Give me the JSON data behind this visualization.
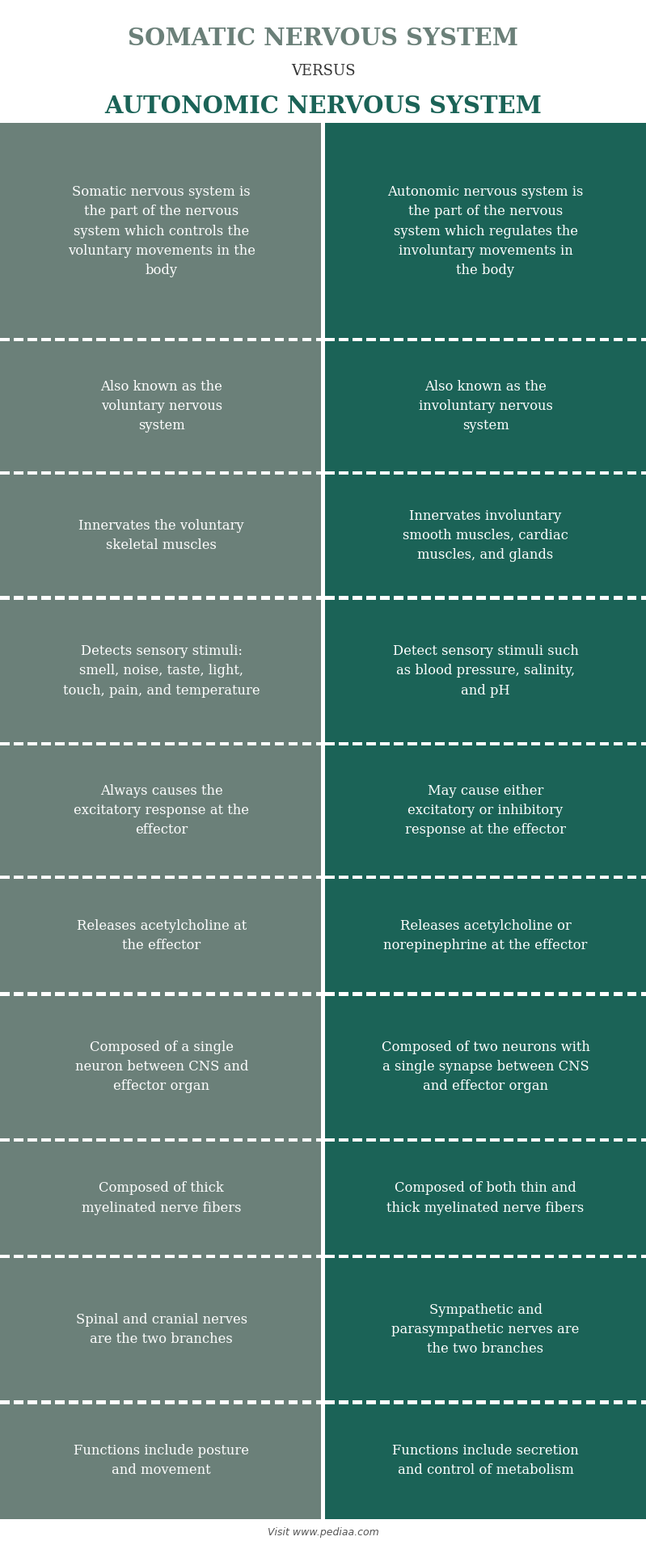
{
  "title1": "SOMATIC NERVOUS SYSTEM",
  "versus": "VERSUS",
  "title2": "AUTONOMIC NERVOUS SYSTEM",
  "left_color": "#6b8079",
  "right_color": "#1b6357",
  "text_color": "#ffffff",
  "bg_color": "#ffffff",
  "title1_color": "#6b8079",
  "title2_color": "#1b6357",
  "versus_color": "#333333",
  "footer": "Visit www.pediaa.com",
  "footer_color": "#555555",
  "rows": [
    {
      "left": "Somatic nervous system is\nthe part of the nervous\nsystem which controls the\nvoluntary movements in the\nbody",
      "right": "Autonomic nervous system is\nthe part of the nervous\nsystem which regulates the\ninvoluntary movements in\nthe body"
    },
    {
      "left": "Also known as the\nvoluntary nervous\nsystem",
      "right": "Also known as the\ninvoluntary nervous\nsystem"
    },
    {
      "left": "Innervates the voluntary\nskeletal muscles",
      "right": "Innervates involuntary\nsmooth muscles, cardiac\nmuscles, and glands"
    },
    {
      "left": "Detects sensory stimuli:\nsmell, noise, taste, light,\ntouch, pain, and temperature",
      "right": "Detect sensory stimuli such\nas blood pressure, salinity,\nand pH"
    },
    {
      "left": "Always causes the\nexcitatory response at the\neffector",
      "right": "May cause either\nexcitatory or inhibitory\nresponse at the effector"
    },
    {
      "left": "Releases acetylcholine at\nthe effector",
      "right": "Releases acetylcholine or\nnorepinephrine at the effector"
    },
    {
      "left": "Composed of a single\nneuron between CNS and\neffector organ",
      "right": "Composed of two neurons with\na single synapse between CNS\nand effector organ"
    },
    {
      "left": "Composed of thick\nmyelinated nerve fibers",
      "right": "Composed of both thin and\nthick myelinated nerve fibers"
    },
    {
      "left": "Spinal and cranial nerves\nare the two branches",
      "right": "Sympathetic and\nparasympathetic nerves are\nthe two branches"
    },
    {
      "left": "Functions include posture\nand movement",
      "right": "Functions include secretion\nand control of metabolism"
    }
  ],
  "row_heights_rel": [
    5.2,
    3.2,
    3.0,
    3.5,
    3.2,
    2.8,
    3.5,
    2.8,
    3.5,
    2.8
  ]
}
